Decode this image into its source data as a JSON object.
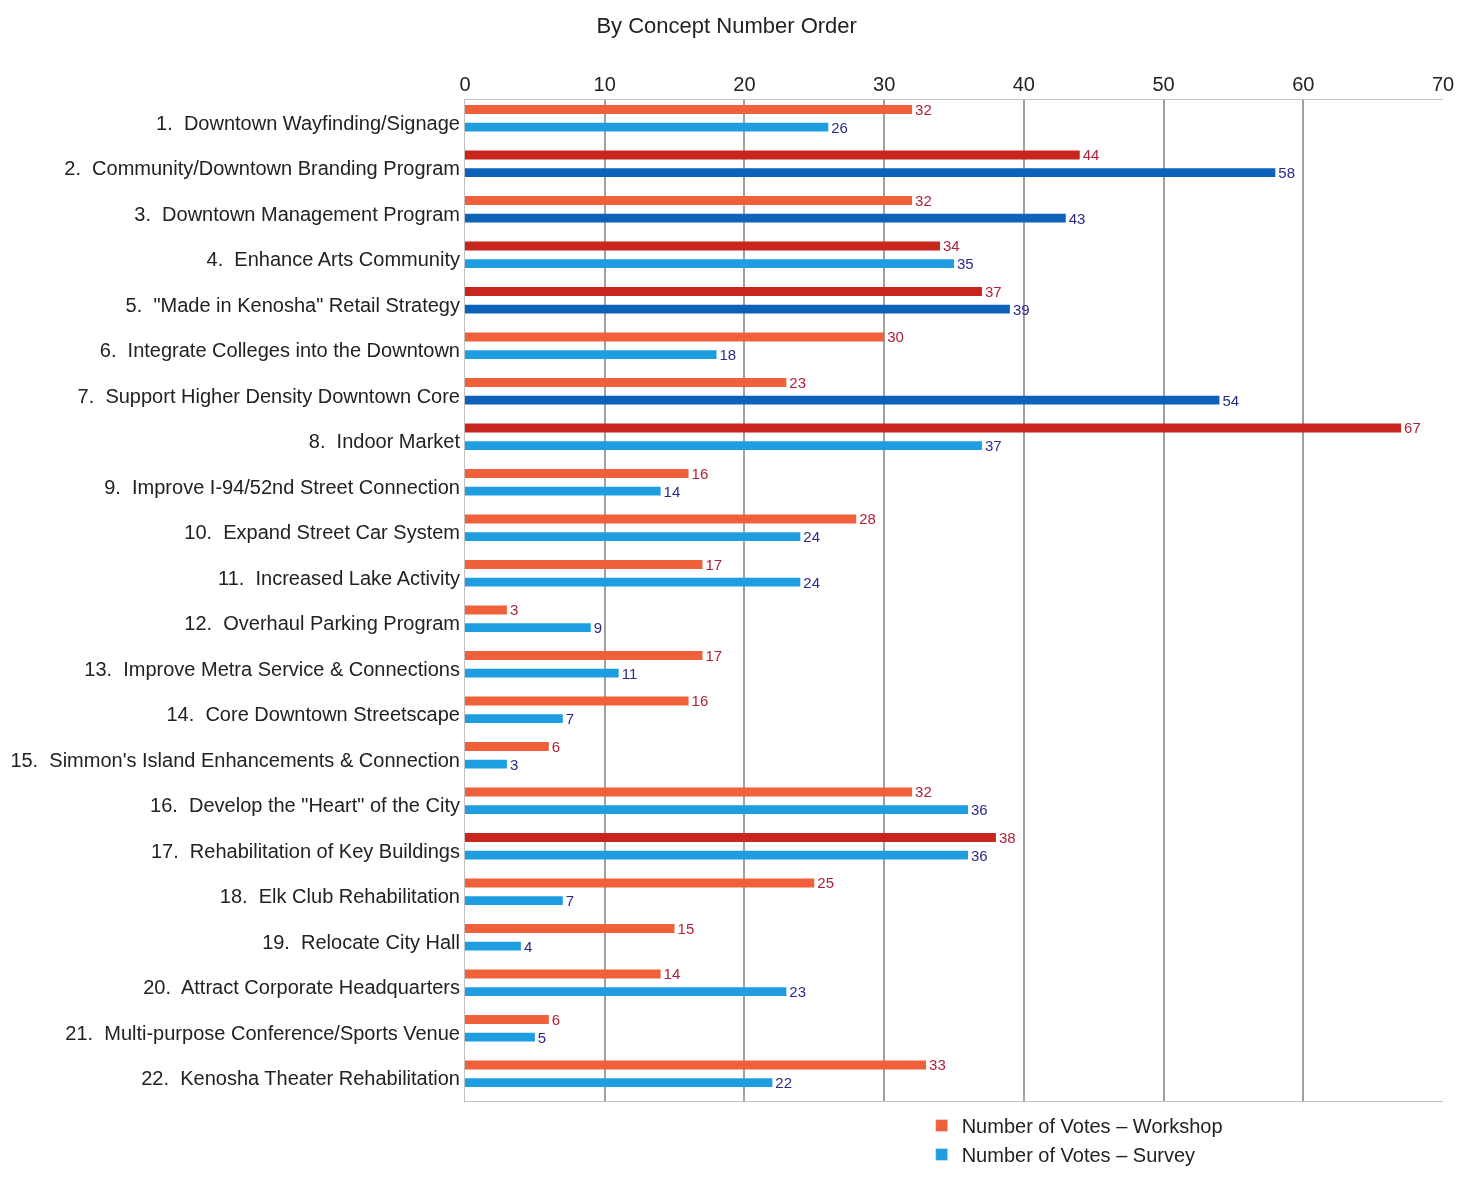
{
  "chart_data": {
    "type": "bar",
    "orientation": "horizontal",
    "title": "By Concept Number Order",
    "categories": [
      "1.  Downtown Wayfinding/Signage",
      "2.  Community/Downtown Branding Program",
      "3.  Downtown Management Program",
      "4.  Enhance Arts Community",
      "5.  \"Made in Kenosha\" Retail Strategy",
      "6.  Integrate Colleges into the Downtown",
      "7.  Support Higher Density Downtown Core",
      "8.  Indoor Market",
      "9.  Improve I-94/52nd Street Connection",
      "10.  Expand Street Car System",
      "11.  Increased Lake Activity",
      "12.  Overhaul Parking Program",
      "13.  Improve Metra Service & Connections",
      "14.  Core Downtown Streetscape",
      "15.  Simmon's Island Enhancements & Connection",
      "16.  Develop the \"Heart\" of the City",
      "17.  Rehabilitation of Key Buildings",
      "18.  Elk Club Rehabilitation",
      "19.  Relocate City Hall",
      "20.  Attract Corporate Headquarters",
      "21.  Multi-purpose Conference/Sports Venue",
      "22.  Kenosha Theater Rehabilitation"
    ],
    "series": [
      {
        "name": "Number of Votes – Workshop",
        "color": "#f0603a",
        "values": [
          32,
          44,
          32,
          34,
          37,
          30,
          23,
          67,
          16,
          28,
          17,
          3,
          17,
          16,
          6,
          32,
          38,
          25,
          15,
          14,
          6,
          33
        ],
        "colors": [
          "#f0603a",
          "#c8251c",
          "#f0603a",
          "#c8251c",
          "#c8251c",
          "#f0603a",
          "#f0603a",
          "#c8251c",
          "#f0603a",
          "#f0603a",
          "#f0603a",
          "#f0603a",
          "#f0603a",
          "#f0603a",
          "#f0603a",
          "#f0603a",
          "#c8251c",
          "#f0603a",
          "#f0603a",
          "#f0603a",
          "#f0603a",
          "#f0603a"
        ]
      },
      {
        "name": "Number of Votes – Survey",
        "color": "#1e9ee0",
        "values": [
          26,
          58,
          43,
          35,
          39,
          18,
          54,
          37,
          14,
          24,
          24,
          9,
          11,
          7,
          3,
          36,
          36,
          7,
          4,
          23,
          5,
          22
        ],
        "colors": [
          "#1e9ee0",
          "#0b62b8",
          "#0b62b8",
          "#1e9ee0",
          "#0b62b8",
          "#1e9ee0",
          "#0b62b8",
          "#1e9ee0",
          "#1e9ee0",
          "#1e9ee0",
          "#1e9ee0",
          "#1e9ee0",
          "#1e9ee0",
          "#1e9ee0",
          "#1e9ee0",
          "#1e9ee0",
          "#1e9ee0",
          "#1e9ee0",
          "#1e9ee0",
          "#1e9ee0",
          "#1e9ee0",
          "#1e9ee0"
        ]
      }
    ],
    "xlim": [
      0,
      70
    ],
    "xticks": [
      0,
      10,
      20,
      30,
      40,
      50,
      60,
      70
    ],
    "grid": "x",
    "legend": "bottom",
    "data_labels": true
  }
}
